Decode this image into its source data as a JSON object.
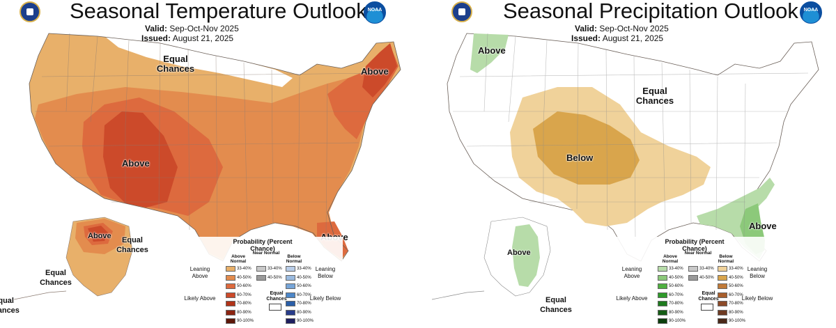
{
  "temperature": {
    "title": "Seasonal Temperature Outlook",
    "valid_label": "Valid:",
    "valid_value": "Sep-Oct-Nov 2025",
    "issued_label": "Issued:",
    "issued_value": "August 21, 2025",
    "labels": {
      "equal_chances_main": "Equal Chances",
      "above_northeast": "Above",
      "above_southwest": "Above",
      "above_florida": "Above",
      "above_alaska": "Above",
      "equal_chances_alaska_east": "Equal Chances",
      "equal_chances_alaska_south": "Equal Chances",
      "equal_chances_alaska_west": "Equal Chances"
    },
    "legend": {
      "title": "Probability (Percent Chance)",
      "col_above": "Above Normal",
      "col_near": "Near Normal",
      "col_below": "Below Normal",
      "leaning_above": "Leaning Above",
      "leaning_below": "Leaning Below",
      "likely_above": "Likely Above",
      "likely_below": "Likely Below",
      "equal_chances": "Equal Chances",
      "above_ranges": [
        "33-40%",
        "40-50%",
        "50-60%",
        "60-70%",
        "70-80%",
        "80-90%",
        "90-100%"
      ],
      "near_ranges": [
        "33-40%",
        "40-50%"
      ],
      "below_ranges": [
        "33-40%",
        "40-50%",
        "50-60%",
        "60-70%",
        "70-80%",
        "80-90%",
        "90-100%"
      ],
      "above_colors": [
        "#e8b06a",
        "#e38c4e",
        "#dd6a3e",
        "#cc4a2a",
        "#b13318",
        "#8c2410",
        "#5c1608"
      ],
      "near_colors": [
        "#c8c8c8",
        "#9a9a9a"
      ],
      "below_colors": [
        "#b9cde8",
        "#9bbbe0",
        "#77a5d8",
        "#4d87c8",
        "#2a5ea8",
        "#283c8a",
        "#1e1e5e"
      ]
    }
  },
  "precipitation": {
    "title": "Seasonal Precipitation Outlook",
    "valid_label": "Valid:",
    "valid_value": "Sep-Oct-Nov 2025",
    "issued_label": "Issued:",
    "issued_value": "August 21, 2025",
    "labels": {
      "above_northwest": "Above",
      "equal_chances_main": "Equal Chances",
      "below_southwest": "Below",
      "above_southeast": "Above",
      "above_alaska": "Above",
      "equal_chances_alaska": "Equal Chances"
    },
    "legend": {
      "title": "Probability (Percent Chance)",
      "col_above": "Above Normal",
      "col_near": "Near Normal",
      "col_below": "Below Normal",
      "leaning_above": "Leaning Above",
      "leaning_below": "Leaning Below",
      "likely_above": "Likely Above",
      "likely_below": "Likely Below",
      "equal_chances": "Equal Chances",
      "above_ranges": [
        "33-40%",
        "40-50%",
        "50-60%",
        "60-70%",
        "70-80%",
        "80-90%",
        "90-100%"
      ],
      "near_ranges": [
        "33-40%",
        "40-50%"
      ],
      "below_ranges": [
        "33-40%",
        "40-50%",
        "50-60%",
        "60-70%",
        "70-80%",
        "80-90%",
        "90-100%"
      ],
      "above_colors": [
        "#b7dca9",
        "#8cc97a",
        "#4fb040",
        "#2e9a2a",
        "#1e7a1e",
        "#155c15",
        "#0c3e0c"
      ],
      "near_colors": [
        "#c8c8c8",
        "#9a9a9a"
      ],
      "below_colors": [
        "#f0d29a",
        "#d9a54c",
        "#c07a38",
        "#a85e2c",
        "#8c4a28",
        "#6e3a22",
        "#4a2818"
      ]
    }
  }
}
